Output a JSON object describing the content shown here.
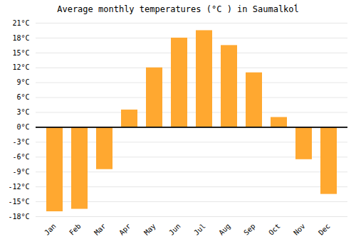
{
  "chart_data": {
    "type": "bar",
    "title": "Average monthly temperatures (°C ) in Saumalkoĺ",
    "categories": [
      "Jan",
      "Feb",
      "Mar",
      "Apr",
      "May",
      "Jun",
      "Jul",
      "Aug",
      "Sep",
      "Oct",
      "Nov",
      "Dec"
    ],
    "values": [
      -17,
      -16.5,
      -8.5,
      3.5,
      12,
      18,
      19.5,
      16.5,
      11,
      2,
      -6.5,
      -13.5
    ],
    "color": "#FFA830",
    "ylim": [
      -18,
      21
    ],
    "yticks": [
      {
        "value": -18,
        "label": "-18°C"
      },
      {
        "value": -15,
        "label": "-15°C"
      },
      {
        "value": -12,
        "label": "-12°C"
      },
      {
        "value": -9,
        "label": "-9°C"
      },
      {
        "value": -6,
        "label": "-6°C"
      },
      {
        "value": -3,
        "label": "-3°C"
      },
      {
        "value": 0,
        "label": "0°C"
      },
      {
        "value": 3,
        "label": "3°C"
      },
      {
        "value": 6,
        "label": "6°C"
      },
      {
        "value": 9,
        "label": "9°C"
      },
      {
        "value": 12,
        "label": "12°C"
      },
      {
        "value": 15,
        "label": "15°C"
      },
      {
        "value": 18,
        "label": "18°C"
      },
      {
        "value": 21,
        "label": "21°C"
      }
    ],
    "grid": true
  }
}
